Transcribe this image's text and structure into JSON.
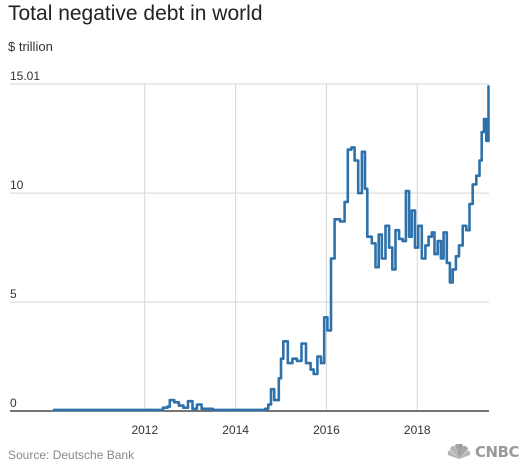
{
  "header": {
    "title": "Total negative debt in world",
    "unit": "$ trillion"
  },
  "footer": {
    "source": "Source: Deutsche Bank",
    "logo_text": "CNBC"
  },
  "colors": {
    "line": "#2f72ab",
    "grid": "#d6d6d6",
    "axis": "#222222",
    "tick_text": "#333333"
  },
  "chart_data": {
    "type": "line",
    "title": "Total negative debt in world",
    "ylabel": "$ trillion",
    "xlabel": "",
    "xlim": [
      2010.0,
      2019.58
    ],
    "ylim": [
      0,
      15.01
    ],
    "y_ticks": [
      0,
      5,
      10,
      15.01
    ],
    "y_tick_labels": [
      "0",
      "5",
      "10",
      "15.01"
    ],
    "x_ticks": [
      2012,
      2014,
      2016,
      2018
    ],
    "x_tick_labels": [
      "2012",
      "2014",
      "2016",
      "2018"
    ],
    "grid": "vertical at x ticks, horizontal at y ticks",
    "legend": "none",
    "series": [
      {
        "values": [
          [
            2010.0,
            0.05
          ],
          [
            2010.7,
            0.05
          ],
          [
            2011.5,
            0.05
          ],
          [
            2012.0,
            0.05
          ],
          [
            2012.4,
            0.15
          ],
          [
            2012.5,
            0.2
          ],
          [
            2012.55,
            0.5
          ],
          [
            2012.65,
            0.4
          ],
          [
            2012.75,
            0.25
          ],
          [
            2012.85,
            0.15
          ],
          [
            2012.95,
            0.45
          ],
          [
            2013.05,
            0.1
          ],
          [
            2013.15,
            0.3
          ],
          [
            2013.25,
            0.1
          ],
          [
            2013.5,
            0.05
          ],
          [
            2014.0,
            0.05
          ],
          [
            2014.5,
            0.05
          ],
          [
            2014.65,
            0.1
          ],
          [
            2014.72,
            0.3
          ],
          [
            2014.78,
            1.0
          ],
          [
            2014.85,
            0.5
          ],
          [
            2014.95,
            1.5
          ],
          [
            2015.0,
            2.4
          ],
          [
            2015.05,
            3.2
          ],
          [
            2015.15,
            2.2
          ],
          [
            2015.25,
            2.4
          ],
          [
            2015.35,
            2.3
          ],
          [
            2015.45,
            3.1
          ],
          [
            2015.55,
            2.2
          ],
          [
            2015.65,
            1.9
          ],
          [
            2015.72,
            1.7
          ],
          [
            2015.8,
            2.5
          ],
          [
            2015.88,
            2.2
          ],
          [
            2015.95,
            4.3
          ],
          [
            2016.02,
            3.7
          ],
          [
            2016.1,
            7.0
          ],
          [
            2016.18,
            8.8
          ],
          [
            2016.3,
            8.7
          ],
          [
            2016.4,
            9.6
          ],
          [
            2016.47,
            12.0
          ],
          [
            2016.55,
            12.1
          ],
          [
            2016.62,
            11.5
          ],
          [
            2016.7,
            10.0
          ],
          [
            2016.78,
            11.9
          ],
          [
            2016.85,
            10.2
          ],
          [
            2016.9,
            8.0
          ],
          [
            2017.0,
            7.7
          ],
          [
            2017.08,
            6.6
          ],
          [
            2017.15,
            8.1
          ],
          [
            2017.22,
            7.0
          ],
          [
            2017.3,
            8.5
          ],
          [
            2017.38,
            7.5
          ],
          [
            2017.45,
            6.5
          ],
          [
            2017.52,
            8.3
          ],
          [
            2017.6,
            7.9
          ],
          [
            2017.68,
            7.8
          ],
          [
            2017.75,
            10.1
          ],
          [
            2017.82,
            8.0
          ],
          [
            2017.88,
            9.2
          ],
          [
            2017.95,
            7.5
          ],
          [
            2018.02,
            8.5
          ],
          [
            2018.1,
            7.0
          ],
          [
            2018.18,
            7.6
          ],
          [
            2018.25,
            8.0
          ],
          [
            2018.32,
            8.2
          ],
          [
            2018.38,
            7.2
          ],
          [
            2018.45,
            7.8
          ],
          [
            2018.52,
            7.0
          ],
          [
            2018.58,
            8.2
          ],
          [
            2018.65,
            6.8
          ],
          [
            2018.72,
            5.9
          ],
          [
            2018.78,
            6.5
          ],
          [
            2018.85,
            7.1
          ],
          [
            2018.92,
            7.6
          ],
          [
            2019.0,
            8.5
          ],
          [
            2019.08,
            8.3
          ],
          [
            2019.15,
            9.5
          ],
          [
            2019.22,
            10.4
          ],
          [
            2019.3,
            10.8
          ],
          [
            2019.37,
            11.5
          ],
          [
            2019.42,
            12.8
          ],
          [
            2019.47,
            13.4
          ],
          [
            2019.52,
            12.4
          ],
          [
            2019.57,
            14.9
          ]
        ]
      }
    ]
  }
}
